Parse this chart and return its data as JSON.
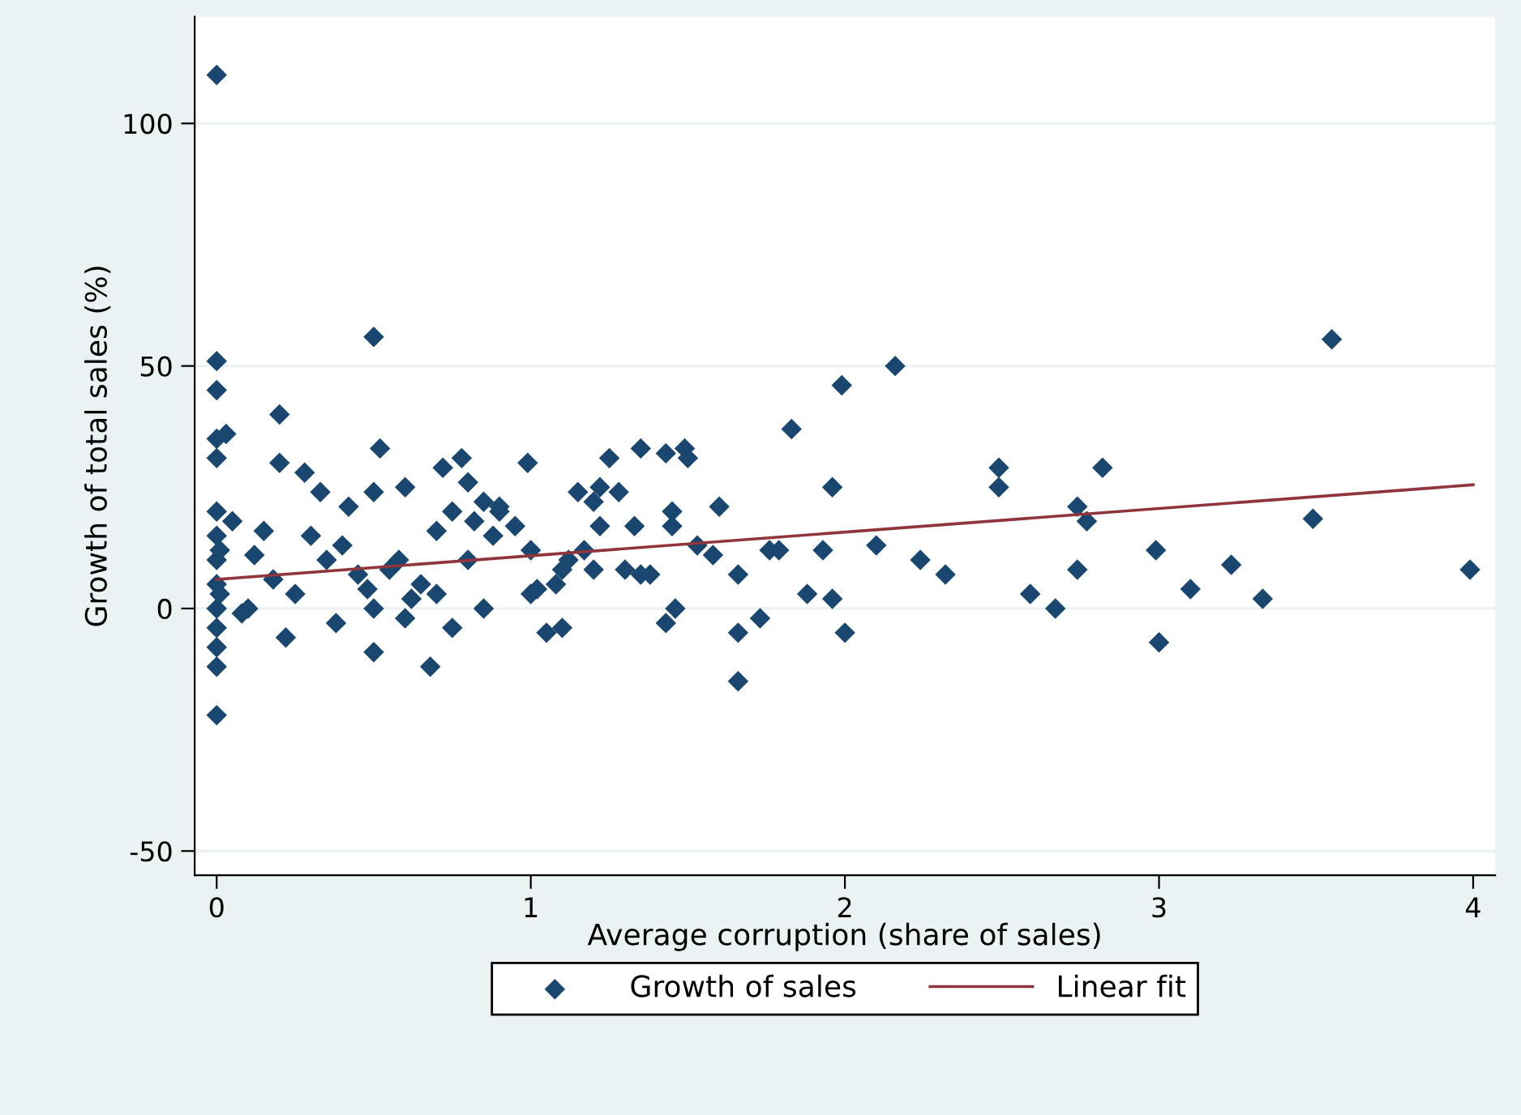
{
  "chart_data": {
    "type": "scatter",
    "xlabel": "Average corruption (share of sales)",
    "ylabel": "Growth of total sales (%)",
    "xlim": [
      -0.07,
      4.07
    ],
    "ylim": [
      -55,
      122
    ],
    "xticks": [
      0,
      1,
      2,
      3,
      4
    ],
    "yticks": [
      -50,
      0,
      50,
      100
    ],
    "grid": "y",
    "legend": "bottom",
    "series": [
      {
        "name": "Growth of sales",
        "marker": "diamond",
        "color": "#1a476f",
        "x": [
          0,
          0,
          0,
          0,
          0,
          0,
          0,
          0,
          0,
          0,
          0,
          0,
          0,
          0,
          0.01,
          0.01,
          0.03,
          0.05,
          0.08,
          0.1,
          0.12,
          0.15,
          0.18,
          0.2,
          0.2,
          0.22,
          0.25,
          0.28,
          0.3,
          0.33,
          0.35,
          0.38,
          0.4,
          0.42,
          0.45,
          0.48,
          0.5,
          0.5,
          0.5,
          0.5,
          0.52,
          0.55,
          0.58,
          0.6,
          0.6,
          0.62,
          0.65,
          0.68,
          0.7,
          0.7,
          0.72,
          0.75,
          0.75,
          0.78,
          0.8,
          0.8,
          0.82,
          0.85,
          0.85,
          0.88,
          0.9,
          0.9,
          0.95,
          0.99,
          1.0,
          1.0,
          1.02,
          1.05,
          1.08,
          1.1,
          1.1,
          1.12,
          1.15,
          1.17,
          1.2,
          1.2,
          1.22,
          1.22,
          1.25,
          1.28,
          1.3,
          1.33,
          1.35,
          1.35,
          1.38,
          1.43,
          1.43,
          1.45,
          1.45,
          1.46,
          1.49,
          1.5,
          1.53,
          1.58,
          1.6,
          1.66,
          1.66,
          1.66,
          1.73,
          1.76,
          1.79,
          1.83,
          1.88,
          1.93,
          1.96,
          1.96,
          1.99,
          2.0,
          2.1,
          2.16,
          2.24,
          2.32,
          2.49,
          2.49,
          2.59,
          2.67,
          2.74,
          2.74,
          2.77,
          2.82,
          2.99,
          3.0,
          3.1,
          3.23,
          3.33,
          3.49,
          3.55,
          3.99
        ],
        "values": [
          110,
          51,
          45,
          35,
          31,
          20,
          15,
          10,
          5,
          0,
          -4,
          -8,
          -12,
          -22,
          12,
          3,
          36,
          18,
          -1,
          0,
          11,
          16,
          6,
          40,
          30,
          -6,
          3,
          28,
          15,
          24,
          10,
          -3,
          13,
          21,
          7,
          4,
          56,
          24,
          -9,
          0,
          33,
          8,
          10,
          25,
          -2,
          2,
          5,
          -12,
          16,
          3,
          29,
          20,
          -4,
          31,
          26,
          10,
          18,
          22,
          0,
          15,
          20,
          21,
          17,
          30,
          12,
          3,
          4,
          -5,
          5,
          -4,
          8,
          10,
          24,
          12,
          22,
          8,
          25,
          17,
          31,
          24,
          8,
          17,
          33,
          7,
          7,
          32,
          -3,
          20,
          17,
          0,
          33,
          31,
          13,
          11,
          21,
          7,
          -5,
          -15,
          -2,
          12,
          12,
          37,
          3,
          12,
          25,
          2,
          46,
          -5,
          13,
          50,
          10,
          7,
          29,
          25,
          3,
          0,
          21,
          8,
          18,
          29,
          12,
          -7,
          4,
          9,
          2,
          18.5,
          55.5,
          8
        ]
      },
      {
        "name": "Linear fit",
        "type": "line",
        "marker": "none",
        "line_style": "solid",
        "color": "#90353b",
        "x": [
          0,
          4
        ],
        "values": [
          6,
          25.5
        ]
      }
    ]
  }
}
